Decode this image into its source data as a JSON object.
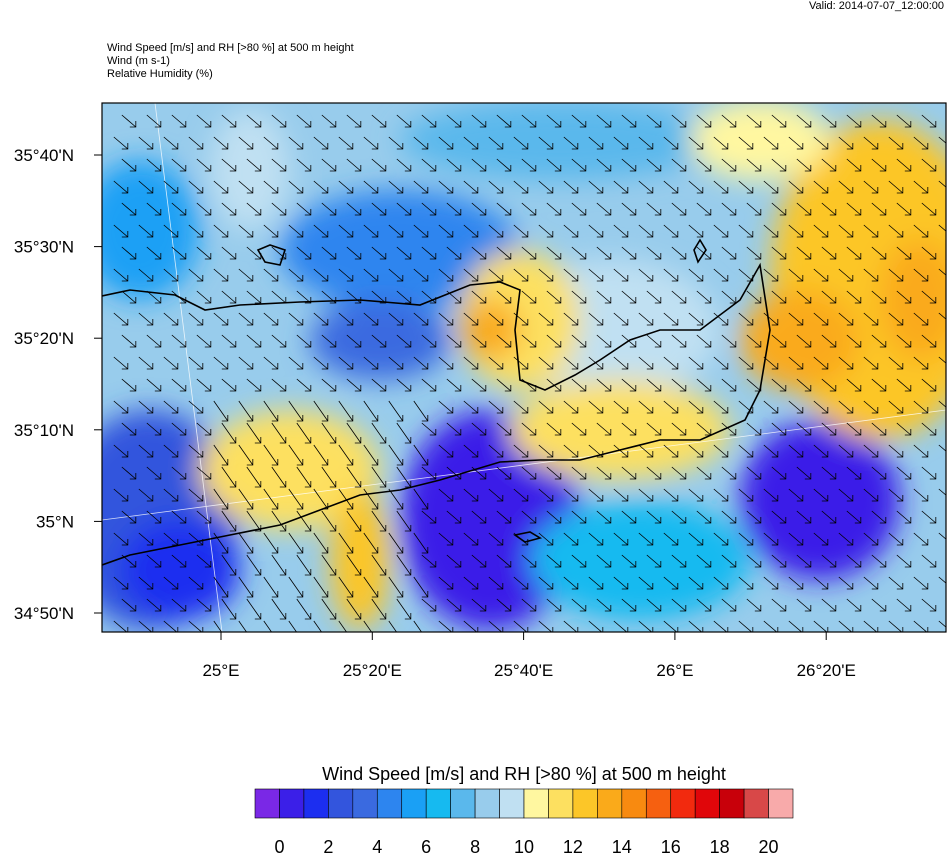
{
  "valid": "Valid: 2014-07-07_12:00:00",
  "header": {
    "lines": [
      "Wind Speed [m/s] and RH [>80 %] at 500 m height",
      "Wind   (m s-1)",
      "Relative Humidity   (%)"
    ]
  },
  "map": {
    "lat_labels": [
      "35°40'N",
      "35°30'N",
      "35°20'N",
      "35°10'N",
      "35°N",
      "34°50'N"
    ],
    "lon_labels": [
      "25°E",
      "25°20'E",
      "25°40'E",
      "26°E",
      "26°20'E"
    ]
  },
  "colorbar": {
    "title": "Wind Speed [m/s] and RH [>80 %] at 500 m height",
    "colors": [
      "#7a28e6",
      "#3b1fe8",
      "#1c2ef0",
      "#3355dd",
      "#3a6ae0",
      "#2d85ef",
      "#1aa0f5",
      "#16baf0",
      "#5ab8ec",
      "#98ccec",
      "#c0e0f2",
      "#fff7a0",
      "#fde060",
      "#fcc628",
      "#faaa1a",
      "#f88a10",
      "#f66010",
      "#f22a0e",
      "#e0060a",
      "#c8000a",
      "#d84848",
      "#f8aaaa"
    ],
    "labels": [
      "0",
      "2",
      "4",
      "6",
      "8",
      "10",
      "12",
      "14",
      "16",
      "18",
      "20"
    ]
  }
}
